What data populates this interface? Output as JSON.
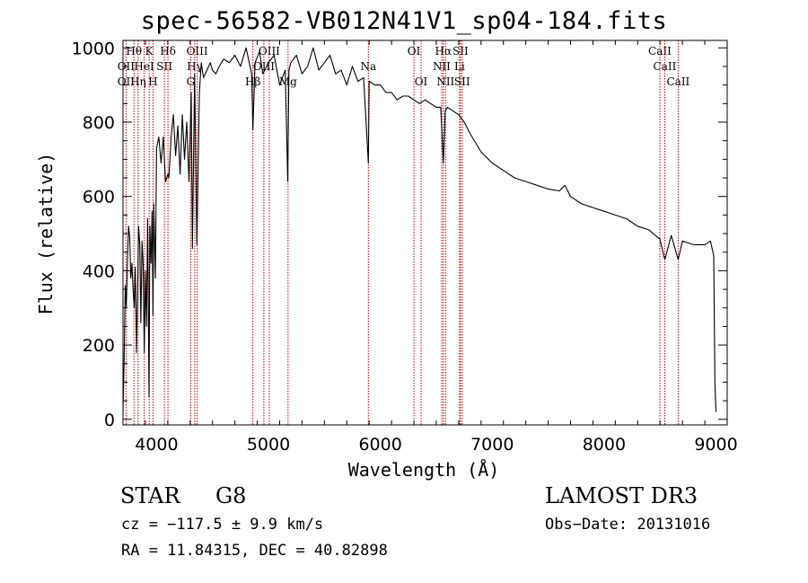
{
  "chart_data": {
    "type": "line",
    "title": "spec-56582-VB012N41V1_sp04-184.fits",
    "xlabel": "Wavelength (Å)",
    "ylabel": "Flux (relative)",
    "xlim": [
      3700,
      9100
    ],
    "ylim": [
      -15,
      1020
    ],
    "x_ticks": [
      4000,
      5000,
      6000,
      7000,
      8000,
      9000
    ],
    "x_tick_labels": [
      "4000",
      "5000",
      "6000",
      "7000",
      "8000",
      "9000"
    ],
    "y_ticks": [
      0,
      200,
      400,
      600,
      800,
      1000
    ],
    "y_tick_labels": [
      "0",
      "200",
      "400",
      "600",
      "800",
      "1000"
    ],
    "series": [
      {
        "name": "flux",
        "x": [
          3700,
          3710,
          3720,
          3730,
          3740,
          3750,
          3760,
          3770,
          3780,
          3790,
          3800,
          3810,
          3820,
          3830,
          3840,
          3850,
          3860,
          3870,
          3880,
          3890,
          3900,
          3910,
          3920,
          3933,
          3940,
          3950,
          3960,
          3968,
          3975,
          3990,
          4000,
          4020,
          4040,
          4060,
          4080,
          4101,
          4110,
          4130,
          4150,
          4170,
          4190,
          4210,
          4230,
          4250,
          4270,
          4290,
          4310,
          4320,
          4340,
          4360,
          4383,
          4400,
          4420,
          4450,
          4480,
          4500,
          4530,
          4560,
          4600,
          4650,
          4700,
          4750,
          4800,
          4850,
          4861,
          4880,
          4920,
          4950,
          5000,
          5050,
          5100,
          5150,
          5172,
          5183,
          5200,
          5250,
          5300,
          5350,
          5400,
          5450,
          5500,
          5550,
          5600,
          5650,
          5700,
          5750,
          5800,
          5850,
          5893,
          5900,
          5950,
          6000,
          6050,
          6100,
          6150,
          6200,
          6250,
          6300,
          6350,
          6400,
          6450,
          6500,
          6540,
          6563,
          6580,
          6600,
          6650,
          6700,
          6750,
          6800,
          6900,
          7000,
          7100,
          7200,
          7300,
          7400,
          7500,
          7600,
          7650,
          7700,
          7800,
          7900,
          8000,
          8100,
          8200,
          8300,
          8400,
          8498,
          8542,
          8600,
          8662,
          8700,
          8800,
          8900,
          8950,
          8980,
          8990,
          9000
        ],
        "y": [
          20,
          150,
          360,
          300,
          430,
          520,
          490,
          380,
          420,
          350,
          300,
          410,
          180,
          330,
          520,
          470,
          260,
          480,
          420,
          180,
          400,
          250,
          540,
          60,
          520,
          420,
          560,
          280,
          580,
          380,
          730,
          760,
          690,
          760,
          640,
          660,
          650,
          760,
          820,
          710,
          790,
          660,
          820,
          700,
          800,
          640,
          880,
          460,
          930,
          470,
          880,
          960,
          920,
          940,
          960,
          940,
          930,
          950,
          970,
          960,
          980,
          950,
          1000,
          930,
          780,
          960,
          990,
          930,
          960,
          980,
          900,
          940,
          640,
          940,
          960,
          980,
          930,
          950,
          1000,
          940,
          960,
          980,
          930,
          940,
          900,
          950,
          910,
          920,
          690,
          910,
          900,
          900,
          880,
          880,
          860,
          870,
          870,
          860,
          850,
          860,
          850,
          840,
          840,
          690,
          830,
          840,
          830,
          820,
          800,
          770,
          720,
          690,
          670,
          650,
          640,
          630,
          620,
          615,
          630,
          600,
          580,
          570,
          560,
          550,
          540,
          520,
          510,
          485,
          430,
          495,
          430,
          480,
          470,
          470,
          480,
          440,
          100,
          20
        ]
      }
    ],
    "line_markers": [
      {
        "label": "Hθ",
        "x": 3798,
        "row": 0
      },
      {
        "label": "K",
        "x": 3934,
        "row": 0
      },
      {
        "label": "Hδ",
        "x": 4102,
        "row": 0
      },
      {
        "label": "OIII",
        "x": 4363,
        "row": 0
      },
      {
        "label": "OII",
        "x": 3727,
        "row": 1
      },
      {
        "label": "HeI",
        "x": 3889,
        "row": 1
      },
      {
        "label": "SII",
        "x": 4070,
        "row": 1
      },
      {
        "label": "Hγ",
        "x": 4341,
        "row": 1
      },
      {
        "label": "OII",
        "x": 3727,
        "row": 2
      },
      {
        "label": "Hη",
        "x": 3835,
        "row": 2
      },
      {
        "label": "H",
        "x": 3968,
        "row": 2
      },
      {
        "label": "G",
        "x": 4305,
        "row": 2
      },
      {
        "label": "Hβ",
        "x": 4861,
        "row": 2
      },
      {
        "label": "OIII",
        "x": 5007,
        "row": 0
      },
      {
        "label": "OIII",
        "x": 4959,
        "row": 1
      },
      {
        "label": "Mg",
        "x": 5175,
        "row": 2
      },
      {
        "label": "Na",
        "x": 5893,
        "row": 1
      },
      {
        "label": "OI",
        "x": 6300,
        "row": 0
      },
      {
        "label": "OI",
        "x": 6364,
        "row": 2
      },
      {
        "label": "Hα",
        "x": 6563,
        "row": 0
      },
      {
        "label": "NII",
        "x": 6548,
        "row": 1
      },
      {
        "label": "NII",
        "x": 6583,
        "row": 2
      },
      {
        "label": "SII",
        "x": 6716,
        "row": 0
      },
      {
        "label": "Li",
        "x": 6708,
        "row": 1
      },
      {
        "label": "SII",
        "x": 6731,
        "row": 2
      },
      {
        "label": "CaII",
        "x": 8498,
        "row": 0
      },
      {
        "label": "CaII",
        "x": 8542,
        "row": 1
      },
      {
        "label": "CaII",
        "x": 8662,
        "row": 2
      }
    ]
  },
  "info": {
    "object_class": "STAR",
    "subclass": "G8",
    "survey": "LAMOST DR3",
    "cz": "cz = −117.5 ± 9.9 km/s",
    "obs_date": "Obs−Date: 20131016",
    "coords": "RA =  11.84315, DEC =  40.82898"
  }
}
